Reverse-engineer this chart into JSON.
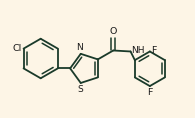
{
  "background_color": "#fdf5e6",
  "line_color": "#1a3a2a",
  "text_color": "#1a1a1a",
  "bond_lw": 1.3,
  "font_size": 6.5,
  "figsize": [
    1.95,
    1.18
  ],
  "dpi": 100,
  "xlim": [
    0,
    1.95
  ],
  "ylim": [
    0,
    1.18
  ]
}
